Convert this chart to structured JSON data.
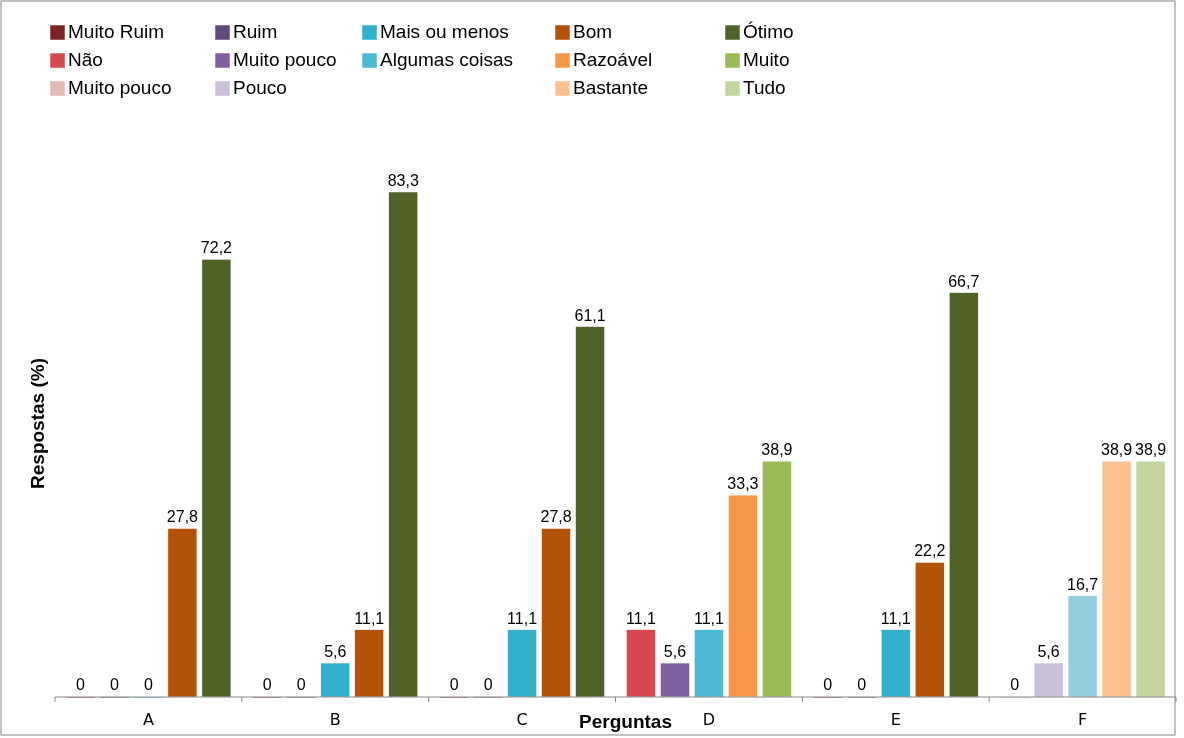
{
  "chart_data": {
    "type": "bar",
    "categories": [
      "A",
      "B",
      "C",
      "D",
      "E",
      "F"
    ],
    "xlabel": "Perguntas",
    "ylabel": "Respostas (%)",
    "legend": "top",
    "series": [
      {
        "name": "Muito Ruim",
        "color": "#7b2424",
        "values": [
          0,
          0,
          0,
          null,
          0,
          null
        ],
        "value_labels": [
          "0",
          "0",
          "0",
          null,
          "0",
          null
        ]
      },
      {
        "name": "Ruim",
        "color": "#604a7b",
        "values": [
          0,
          0,
          0,
          null,
          0,
          null
        ],
        "value_labels": [
          "0",
          "0",
          "0",
          null,
          "0",
          null
        ]
      },
      {
        "name": "Mais ou menos",
        "color": "#31b0cc",
        "values": [
          0,
          5.6,
          11.1,
          null,
          11.1,
          null
        ],
        "value_labels": [
          "0",
          "5,6",
          "11,1",
          null,
          "11,1",
          null
        ]
      },
      {
        "name": "Bom",
        "color": "#b35208",
        "values": [
          27.8,
          11.1,
          27.8,
          null,
          22.2,
          null
        ],
        "value_labels": [
          "27,8",
          "11,1",
          "27,8",
          null,
          "22,2",
          null
        ]
      },
      {
        "name": "Ótimo",
        "color": "#4f6228",
        "values": [
          72.2,
          83.3,
          61.1,
          null,
          66.7,
          null
        ],
        "value_labels": [
          "72,2",
          "83,3",
          "61,1",
          null,
          "66,7",
          null
        ]
      },
      {
        "name": "Não",
        "color": "#d9484e",
        "values": [
          null,
          null,
          null,
          11.1,
          null,
          null
        ],
        "value_labels": [
          null,
          null,
          null,
          "11,1",
          null,
          null
        ]
      },
      {
        "name": "Muito pouco",
        "color": "#7f63a1",
        "values": [
          null,
          null,
          null,
          5.6,
          null,
          null
        ],
        "value_labels": [
          null,
          null,
          null,
          "5,6",
          null,
          null
        ]
      },
      {
        "name": "Algumas coisas",
        "color": "#4bb8d4",
        "values": [
          null,
          null,
          null,
          11.1,
          null,
          null
        ],
        "value_labels": [
          null,
          null,
          null,
          "11,1",
          null,
          null
        ]
      },
      {
        "name": "Razoável",
        "color": "#f79646",
        "values": [
          null,
          null,
          null,
          33.3,
          null,
          null
        ],
        "value_labels": [
          null,
          null,
          null,
          "33,3",
          null,
          null
        ]
      },
      {
        "name": "Muito",
        "color": "#9bbb59",
        "values": [
          null,
          null,
          null,
          38.9,
          null,
          null
        ],
        "value_labels": [
          null,
          null,
          null,
          "38,9",
          null,
          null
        ]
      },
      {
        "name": "Muito pouco",
        "color": "#e6b9b8",
        "values": [
          null,
          null,
          null,
          null,
          null,
          0
        ],
        "value_labels": [
          null,
          null,
          null,
          null,
          null,
          "0"
        ]
      },
      {
        "name": "Pouco",
        "color": "#ccc1da",
        "values": [
          null,
          null,
          null,
          null,
          null,
          5.6
        ],
        "value_labels": [
          null,
          null,
          null,
          null,
          null,
          "5,6"
        ]
      },
      {
        "color": "#93cddd",
        "values": [
          null,
          null,
          null,
          null,
          null,
          16.7
        ],
        "value_labels": [
          null,
          null,
          null,
          null,
          null,
          "16,7"
        ]
      },
      {
        "name": "Bastante",
        "color": "#fac090",
        "values": [
          null,
          null,
          null,
          null,
          null,
          38.9
        ],
        "value_labels": [
          null,
          null,
          null,
          null,
          null,
          "38,9"
        ]
      },
      {
        "name": "Tudo",
        "color": "#c3d69b",
        "values": [
          null,
          null,
          null,
          null,
          null,
          38.9
        ],
        "value_labels": [
          null,
          null,
          null,
          null,
          null,
          "38,9"
        ]
      }
    ]
  }
}
